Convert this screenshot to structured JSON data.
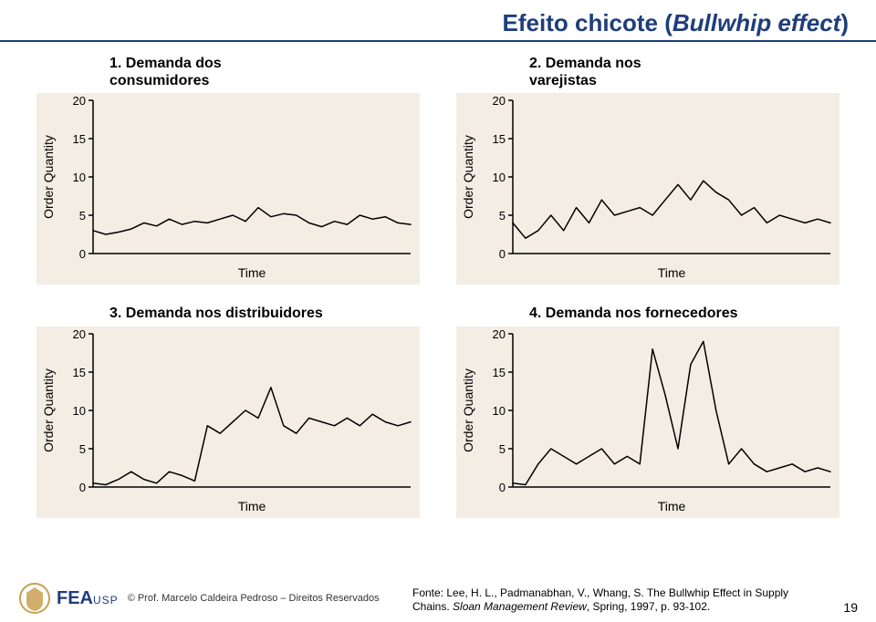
{
  "title_main": "Efeito chicote (",
  "title_italic": "Bullwhip effect",
  "title_close": ")",
  "title_color": "#1f3d7a",
  "charts": [
    {
      "caption_a": "1. Demanda dos",
      "caption_b": "consumidores",
      "ylabel": "Order Quantity",
      "xlabel": "Time",
      "ylim": [
        0,
        20
      ],
      "yticks": [
        0,
        5,
        10,
        15,
        20
      ],
      "x_count": 26,
      "data": [
        3.0,
        2.5,
        2.8,
        3.2,
        4.0,
        3.6,
        4.5,
        3.8,
        4.2,
        4.0,
        4.5,
        5.0,
        4.2,
        6.0,
        4.8,
        5.2,
        5.0,
        4.0,
        3.5,
        4.2,
        3.8,
        5.0,
        4.5,
        4.8,
        4.0,
        3.8
      ],
      "line_color": "#000000",
      "line_width": 1.5,
      "background": "#f3ede4",
      "axis_color": "#000000",
      "tick_fontsize": 13,
      "label_fontsize": 14
    },
    {
      "caption_a": "2. Demanda nos",
      "caption_b": "varejistas",
      "ylabel": "Order Quantity",
      "xlabel": "Time",
      "ylim": [
        0,
        20
      ],
      "yticks": [
        0,
        5,
        10,
        15,
        20
      ],
      "x_count": 26,
      "data": [
        4.0,
        2.0,
        3.0,
        5.0,
        3.0,
        6.0,
        4.0,
        7.0,
        5.0,
        5.5,
        6.0,
        5.0,
        7.0,
        9.0,
        7.0,
        9.5,
        8.0,
        7.0,
        5.0,
        6.0,
        4.0,
        5.0,
        4.5,
        4.0,
        4.5,
        4.0
      ],
      "line_color": "#000000",
      "line_width": 1.5,
      "background": "#f3ede4",
      "axis_color": "#000000",
      "tick_fontsize": 13,
      "label_fontsize": 14
    },
    {
      "caption_a": "3. Demanda nos distribuidores",
      "caption_b": "",
      "ylabel": "Order Quantity",
      "xlabel": "Time",
      "ylim": [
        0,
        20
      ],
      "yticks": [
        0,
        5,
        10,
        15,
        20
      ],
      "x_count": 26,
      "data": [
        0.5,
        0.3,
        1.0,
        2.0,
        1.0,
        0.5,
        2.0,
        1.5,
        0.8,
        8.0,
        7.0,
        8.5,
        10.0,
        9.0,
        13.0,
        8.0,
        7.0,
        9.0,
        8.5,
        8.0,
        9.0,
        8.0,
        9.5,
        8.5,
        8.0,
        8.5
      ],
      "line_color": "#000000",
      "line_width": 1.5,
      "background": "#f3ede4",
      "axis_color": "#000000",
      "tick_fontsize": 13,
      "label_fontsize": 14
    },
    {
      "caption_a": "4. Demanda nos fornecedores",
      "caption_b": "",
      "ylabel": "Order Quantity",
      "xlabel": "Time",
      "ylim": [
        0,
        20
      ],
      "yticks": [
        0,
        5,
        10,
        15,
        20
      ],
      "x_count": 26,
      "data": [
        0.5,
        0.3,
        3.0,
        5.0,
        4.0,
        3.0,
        4.0,
        5.0,
        3.0,
        4.0,
        3.0,
        18.0,
        12.0,
        5.0,
        16.0,
        19.0,
        10.0,
        3.0,
        5.0,
        3.0,
        2.0,
        2.5,
        3.0,
        2.0,
        2.5,
        2.0
      ],
      "line_color": "#000000",
      "line_width": 1.5,
      "background": "#f3ede4",
      "axis_color": "#000000",
      "tick_fontsize": 13,
      "label_fontsize": 14
    }
  ],
  "footer": {
    "logo_main": "FEA",
    "logo_sub": "USP",
    "copyright": "© Prof. Marcelo Caldeira Pedroso – Direitos Reservados",
    "source_prefix": "Fonte: Lee, H. L., Padmanabhan, V., Whang, S. The Bullwhip Effect in Supply Chains. ",
    "source_italic": "Sloan Management Review",
    "source_suffix": ", Spring, 1997, p. 93-102.",
    "page": "19"
  }
}
